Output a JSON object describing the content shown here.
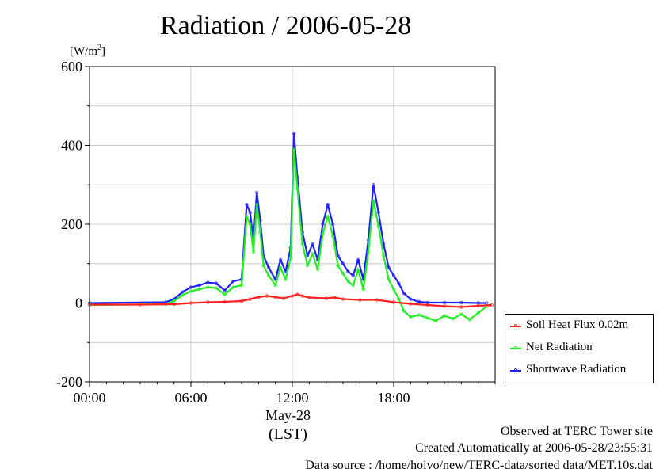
{
  "title": "Radiation / 2006-05-28",
  "y_unit_prefix": "[W/m",
  "y_unit_sup": "2",
  "y_unit_suffix": "]",
  "x_date_label": "May-28",
  "x_tz_label": "(LST)",
  "footer": {
    "line1": "Observed at TERC Tower site",
    "line2": "Created Automatically at 2006-05-28/23:55:31",
    "line3": "Data source : /home/hoivo/new/TERC-data/sorted  data/MET.10s.dat"
  },
  "legend": [
    {
      "label": "Soil Heat Flux 0.02m",
      "color": "#ff2020"
    },
    {
      "label": "Net Radiation",
      "color": "#22ee22"
    },
    {
      "label": "Shortwave Radiation",
      "color": "#2020ff"
    }
  ],
  "chart_data": {
    "type": "line",
    "title": "Radiation / 2006-05-28",
    "ylabel": "[W/m2]",
    "xlabel": "May-28 (LST)",
    "ylim": [
      -200,
      600
    ],
    "xlim_hours": [
      0,
      24
    ],
    "yticks": [
      -200,
      0,
      200,
      400,
      600
    ],
    "xticks": [
      "00:00",
      "06:00",
      "12:00",
      "18:00"
    ],
    "xtick_hours": [
      0,
      6,
      12,
      18
    ],
    "grid": true,
    "legend_position": "lower-right outside",
    "series": [
      {
        "name": "Shortwave Radiation",
        "color": "#2020ff",
        "hours": [
          0,
          4.5,
          5.0,
          5.5,
          6.0,
          6.5,
          7.0,
          7.5,
          8.0,
          8.5,
          9.0,
          9.3,
          9.5,
          9.7,
          9.9,
          10.1,
          10.3,
          10.6,
          11.0,
          11.3,
          11.6,
          11.9,
          12.1,
          12.3,
          12.6,
          12.9,
          13.2,
          13.5,
          13.8,
          14.1,
          14.4,
          14.7,
          15.0,
          15.3,
          15.6,
          15.9,
          16.2,
          16.5,
          16.8,
          17.1,
          17.4,
          17.7,
          18.0,
          18.3,
          18.6,
          19.0,
          19.5,
          20,
          21,
          22,
          23,
          23.5
        ],
        "values": [
          0,
          2,
          10,
          28,
          40,
          45,
          52,
          50,
          32,
          55,
          60,
          250,
          230,
          160,
          280,
          210,
          120,
          90,
          60,
          110,
          80,
          140,
          430,
          320,
          180,
          120,
          150,
          110,
          200,
          250,
          200,
          120,
          100,
          80,
          70,
          110,
          60,
          160,
          300,
          230,
          150,
          90,
          70,
          50,
          25,
          10,
          3,
          1,
          1,
          1,
          0,
          0
        ]
      },
      {
        "name": "Net Radiation",
        "color": "#22ee22",
        "hours": [
          0,
          4.5,
          5.0,
          5.5,
          6.0,
          6.5,
          7.0,
          7.5,
          8.0,
          8.5,
          9.0,
          9.3,
          9.5,
          9.7,
          9.9,
          10.1,
          10.3,
          10.6,
          11.0,
          11.3,
          11.6,
          11.9,
          12.1,
          12.3,
          12.6,
          12.9,
          13.2,
          13.5,
          13.8,
          14.1,
          14.4,
          14.7,
          15.0,
          15.3,
          15.6,
          15.9,
          16.2,
          16.5,
          16.8,
          17.1,
          17.4,
          17.7,
          18.0,
          18.3,
          18.6,
          19.0,
          19.5,
          20,
          20.5,
          21,
          21.5,
          22,
          22.5,
          23,
          23.5
        ],
        "values": [
          -5,
          -3,
          5,
          20,
          30,
          35,
          40,
          38,
          22,
          40,
          45,
          220,
          200,
          130,
          250,
          180,
          95,
          70,
          45,
          90,
          60,
          115,
          390,
          290,
          150,
          95,
          125,
          85,
          175,
          220,
          170,
          95,
          75,
          55,
          45,
          85,
          35,
          130,
          260,
          195,
          120,
          60,
          35,
          10,
          -20,
          -35,
          -30,
          -38,
          -45,
          -32,
          -40,
          -28,
          -42,
          -25,
          -8
        ]
      },
      {
        "name": "Soil Heat Flux 0.02m",
        "color": "#ff2020",
        "hours": [
          0,
          3,
          5,
          6,
          7,
          8,
          9,
          9.5,
          10,
          10.5,
          11,
          11.5,
          12,
          12.3,
          12.6,
          13,
          14,
          14.5,
          15,
          16,
          17,
          18,
          19,
          20,
          21,
          22,
          23,
          23.8
        ],
        "values": [
          -4,
          -4,
          -3,
          0,
          2,
          3,
          5,
          10,
          15,
          18,
          15,
          12,
          18,
          22,
          18,
          14,
          12,
          14,
          10,
          8,
          8,
          2,
          -2,
          -5,
          -8,
          -10,
          -7,
          -5
        ]
      }
    ]
  }
}
